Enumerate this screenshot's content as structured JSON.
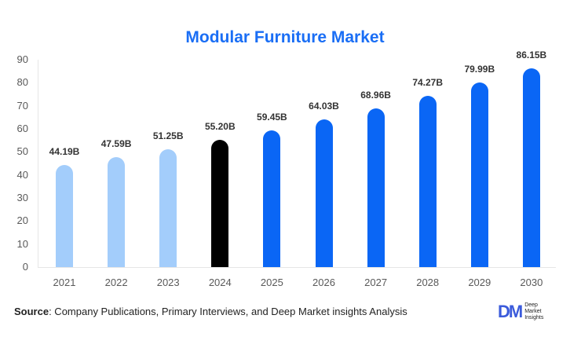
{
  "chart_data": {
    "type": "bar",
    "title": "Modular Furniture Market",
    "xlabel": "",
    "ylabel": "",
    "ylim": [
      0,
      90
    ],
    "yticks": [
      0,
      10,
      20,
      30,
      40,
      50,
      60,
      70,
      80,
      90
    ],
    "categories": [
      "2021",
      "2022",
      "2023",
      "2024",
      "2025",
      "2026",
      "2027",
      "2028",
      "2029",
      "2030"
    ],
    "values": [
      44.19,
      47.59,
      51.25,
      55.2,
      59.45,
      64.03,
      68.96,
      74.27,
      79.99,
      86.15
    ],
    "labels": [
      "44.19B",
      "47.59B",
      "51.25B",
      "55.20B",
      "59.45B",
      "64.03B",
      "68.96B",
      "74.27B",
      "79.99B",
      "86.15B"
    ],
    "bar_colors": [
      "#a3cdfb",
      "#a3cdfb",
      "#a3cdfb",
      "#000000",
      "#0a66f5",
      "#0a66f5",
      "#0a66f5",
      "#0a66f5",
      "#0a66f5",
      "#0a66f5"
    ],
    "grid": false,
    "legend": null
  },
  "source": {
    "prefix": "Source",
    "text": ": Company Publications, Primary Interviews, and Deep Market insights Analysis"
  },
  "logo": {
    "mark": "DM",
    "lines": [
      "Deep",
      "Market",
      "Insights"
    ]
  }
}
